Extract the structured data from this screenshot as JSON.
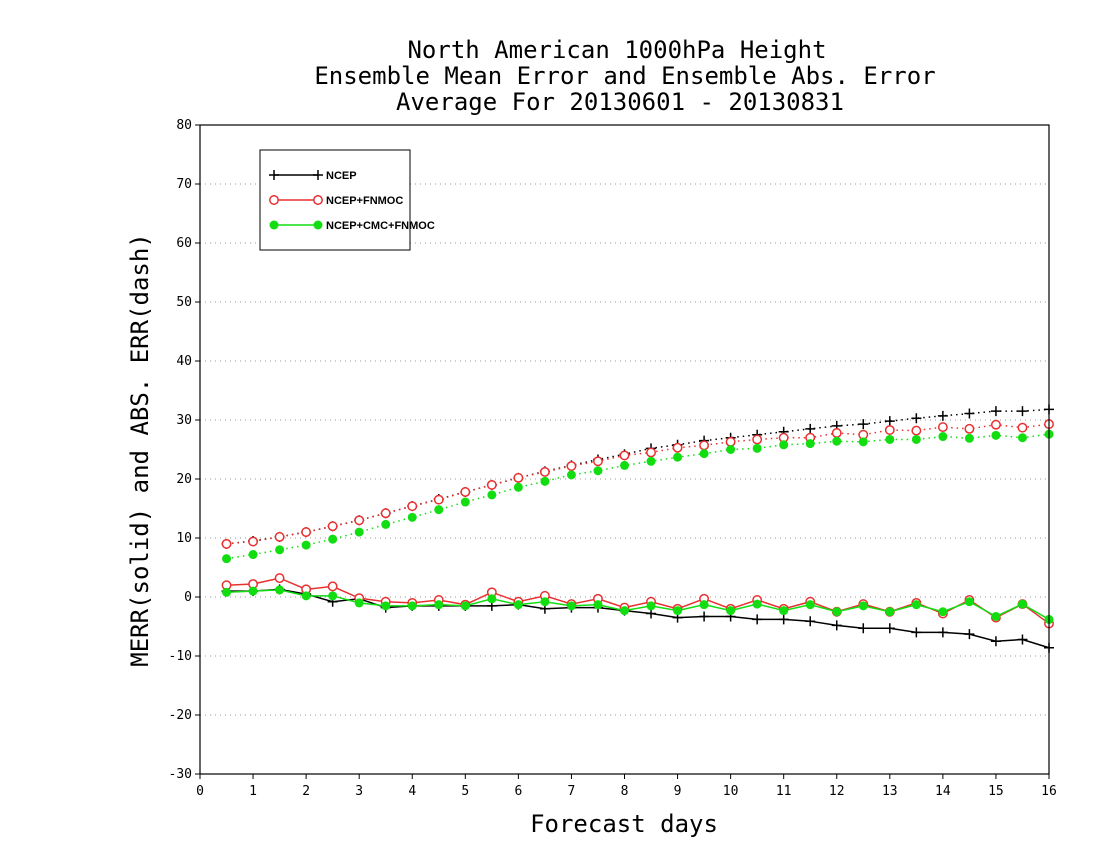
{
  "chart_data": {
    "type": "line",
    "title": [
      "North American 1000hPa Height",
      "Ensemble Mean Error and Ensemble Abs. Error",
      "Average For 20130601 - 20130831"
    ],
    "xlabel": "Forecast days",
    "ylabel": "MERR(solid) and ABS. ERR(dash)",
    "xlim": [
      0,
      16
    ],
    "ylim": [
      -30,
      80
    ],
    "xticks": [
      "0",
      "1",
      "2",
      "3",
      "4",
      "5",
      "6",
      "7",
      "8",
      "9",
      "10",
      "11",
      "12",
      "13",
      "14",
      "15",
      "16"
    ],
    "yticks": [
      "-30",
      "-20",
      "-10",
      "0",
      "10",
      "20",
      "30",
      "40",
      "50",
      "60",
      "70",
      "80"
    ],
    "grid": true,
    "legend_position": "top-left",
    "x": [
      0.5,
      1,
      1.5,
      2,
      2.5,
      3,
      3.5,
      4,
      4.5,
      5,
      5.5,
      6,
      6.5,
      7,
      7.5,
      8,
      8.5,
      9,
      9.5,
      10,
      10.5,
      11,
      11.5,
      12,
      12.5,
      13,
      13.5,
      14,
      14.5,
      15,
      15.5,
      16
    ],
    "series": [
      {
        "name": "NCEP",
        "color": "#000000",
        "marker": "plus",
        "merr": [
          1,
          1,
          1.3,
          0.5,
          -0.8,
          -0.3,
          -1.8,
          -1.5,
          -1.5,
          -1.5,
          -1.5,
          -1.3,
          -2,
          -1.8,
          -1.8,
          -2.3,
          -2.8,
          -3.5,
          -3.3,
          -3.3,
          -3.8,
          -3.8,
          -4.1,
          -4.8,
          -5.3,
          -5.3,
          -6,
          -6,
          -6.3,
          -7.5,
          -7.2,
          -8.6
        ],
        "abserr": [
          9,
          9.5,
          10.2,
          11,
          12,
          13,
          14.2,
          15.4,
          16.6,
          17.8,
          19,
          20.2,
          21.3,
          22.3,
          23.3,
          24.2,
          25.2,
          25.8,
          26.5,
          27,
          27.5,
          28,
          28.5,
          29,
          29.3,
          29.8,
          30.3,
          30.7,
          31.1,
          31.5,
          31.5,
          31.8
        ]
      },
      {
        "name": "NCEP+FNMOC",
        "color": "#e83030",
        "marker": "open-circle",
        "merr": [
          2,
          2.2,
          3.2,
          1.3,
          1.8,
          -0.2,
          -0.8,
          -1,
          -0.5,
          -1.3,
          0.8,
          -0.8,
          0.2,
          -1.2,
          -0.3,
          -1.8,
          -0.8,
          -2,
          -0.3,
          -2,
          -0.5,
          -2,
          -0.8,
          -2.5,
          -1.2,
          -2.5,
          -1,
          -2.8,
          -0.5,
          -3.5,
          -1.2,
          -4.5
        ],
        "abserr": [
          9,
          9.4,
          10.2,
          11,
          12,
          13,
          14.2,
          15.4,
          16.5,
          17.8,
          19,
          20.2,
          21.2,
          22.2,
          23,
          24,
          24.5,
          25.3,
          25.7,
          26.3,
          26.7,
          27,
          27,
          27.8,
          27.5,
          28.3,
          28.2,
          28.8,
          28.5,
          29.2,
          28.7,
          29.3
        ]
      },
      {
        "name": "NCEP+CMC+FNMOC",
        "color": "#11dd11",
        "marker": "filled-circle",
        "merr": [
          0.8,
          1,
          1.2,
          0.2,
          0.2,
          -1,
          -1.5,
          -1.5,
          -1.3,
          -1.5,
          -0.3,
          -1.3,
          -0.8,
          -1.5,
          -1.3,
          -2.3,
          -1.5,
          -2.3,
          -1.3,
          -2.3,
          -1.2,
          -2.3,
          -1.3,
          -2.5,
          -1.5,
          -2.5,
          -1.3,
          -2.5,
          -0.8,
          -3.3,
          -1.2,
          -3.8
        ],
        "abserr": [
          6.5,
          7.2,
          8,
          8.8,
          9.8,
          11,
          12.3,
          13.5,
          14.8,
          16.1,
          17.3,
          18.6,
          19.6,
          20.7,
          21.4,
          22.3,
          23,
          23.7,
          24.3,
          25,
          25.2,
          25.8,
          26,
          26.4,
          26.3,
          26.7,
          26.7,
          27.2,
          26.9,
          27.4,
          27,
          27.6
        ]
      }
    ]
  }
}
